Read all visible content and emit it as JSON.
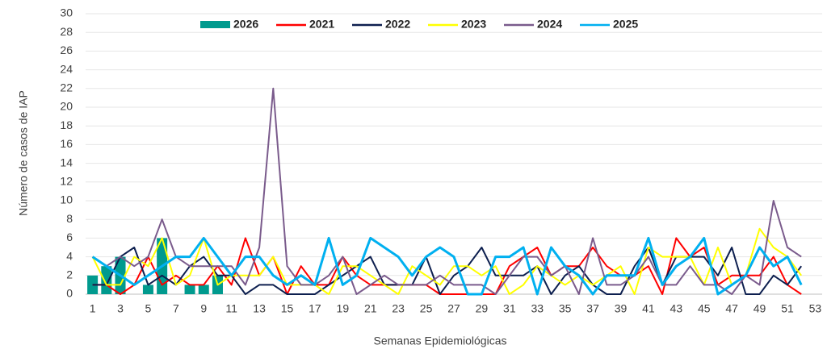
{
  "chart_data": {
    "type": "combo",
    "x_label": "Semanas Epidemiológicas",
    "y_label": "Número de casos de IAP",
    "categories": [
      1,
      null,
      3,
      null,
      5,
      null,
      7,
      null,
      9,
      null,
      11,
      null,
      13,
      null,
      15,
      null,
      17,
      null,
      19,
      null,
      21,
      null,
      23,
      null,
      25,
      null,
      27,
      null,
      29,
      null,
      31,
      null,
      33,
      null,
      35,
      null,
      37,
      null,
      39,
      null,
      41,
      null,
      43,
      null,
      45,
      null,
      47,
      null,
      49,
      null,
      51,
      null,
      53
    ],
    "ylim": [
      0,
      30
    ],
    "yticks": [
      0,
      2,
      4,
      6,
      8,
      10,
      12,
      14,
      16,
      18,
      20,
      22,
      24,
      26,
      28,
      30
    ],
    "grid": true,
    "series": [
      {
        "name": "2026",
        "type": "bar",
        "color": "#009a8e",
        "values": [
          2,
          3,
          4,
          0,
          1,
          6,
          0,
          1,
          1,
          2,
          null,
          null,
          null,
          null,
          null,
          null,
          null,
          null,
          null,
          null,
          null,
          null,
          null,
          null,
          null,
          null,
          null,
          null,
          null,
          null,
          null,
          null,
          null,
          null,
          null,
          null,
          null,
          null,
          null,
          null,
          null,
          null,
          null,
          null,
          null,
          null,
          null,
          null,
          null,
          null,
          null,
          null,
          null
        ]
      },
      {
        "name": "2021",
        "type": "line",
        "color": "#ff0000",
        "values": [
          1,
          1,
          0,
          1,
          4,
          1,
          2,
          1,
          1,
          3,
          1,
          6,
          2,
          4,
          0,
          3,
          1,
          1,
          4,
          2,
          1,
          1,
          1,
          1,
          1,
          0,
          0,
          0,
          0,
          0,
          3,
          4,
          5,
          2,
          3,
          3,
          5,
          3,
          2,
          2,
          3,
          0,
          6,
          4,
          5,
          1,
          2,
          2,
          2,
          4,
          1,
          0,
          null
        ]
      },
      {
        "name": "2022",
        "type": "line",
        "color": "#0d1f4f",
        "values": [
          1,
          1,
          4,
          5,
          1,
          2,
          1,
          3,
          4,
          2,
          2,
          0,
          1,
          1,
          0,
          0,
          0,
          1,
          2,
          3,
          4,
          1,
          1,
          1,
          4,
          0,
          2,
          3,
          5,
          2,
          2,
          2,
          3,
          0,
          2,
          3,
          1,
          0,
          0,
          3,
          5,
          1,
          4,
          4,
          4,
          2,
          5,
          0,
          0,
          2,
          1,
          3,
          null
        ]
      },
      {
        "name": "2023",
        "type": "line",
        "color": "#ffff00",
        "values": [
          4,
          1,
          1,
          4,
          3,
          6,
          1,
          2,
          6,
          1,
          2,
          2,
          2,
          4,
          1,
          1,
          1,
          0,
          3,
          3,
          2,
          1,
          0,
          3,
          2,
          1,
          3,
          3,
          2,
          3,
          0,
          1,
          3,
          2,
          1,
          2,
          1,
          2,
          3,
          0,
          5,
          4,
          4,
          4,
          1,
          5,
          1,
          2,
          7,
          5,
          4,
          2,
          null
        ]
      },
      {
        "name": "2024",
        "type": "line",
        "color": "#7a5b8c",
        "values": [
          4,
          3,
          4,
          3,
          4,
          8,
          4,
          3,
          3,
          3,
          3,
          1,
          5,
          22,
          3,
          1,
          1,
          2,
          4,
          0,
          1,
          2,
          1,
          1,
          1,
          2,
          1,
          1,
          1,
          0,
          2,
          4,
          4,
          2,
          3,
          0,
          6,
          1,
          1,
          2,
          4,
          1,
          1,
          3,
          1,
          1,
          0,
          2,
          1,
          10,
          5,
          4,
          null
        ]
      },
      {
        "name": "2025",
        "type": "line",
        "color": "#00b0f0",
        "values": [
          4,
          3,
          2,
          1,
          2,
          3,
          4,
          4,
          6,
          4,
          2,
          4,
          4,
          2,
          1,
          2,
          1,
          6,
          1,
          2,
          6,
          5,
          4,
          2,
          4,
          5,
          4,
          0,
          0,
          4,
          4,
          5,
          0,
          5,
          3,
          2,
          0,
          2,
          2,
          2,
          6,
          1,
          3,
          4,
          6,
          0,
          1,
          2,
          5,
          3,
          4,
          1,
          null
        ]
      }
    ]
  }
}
